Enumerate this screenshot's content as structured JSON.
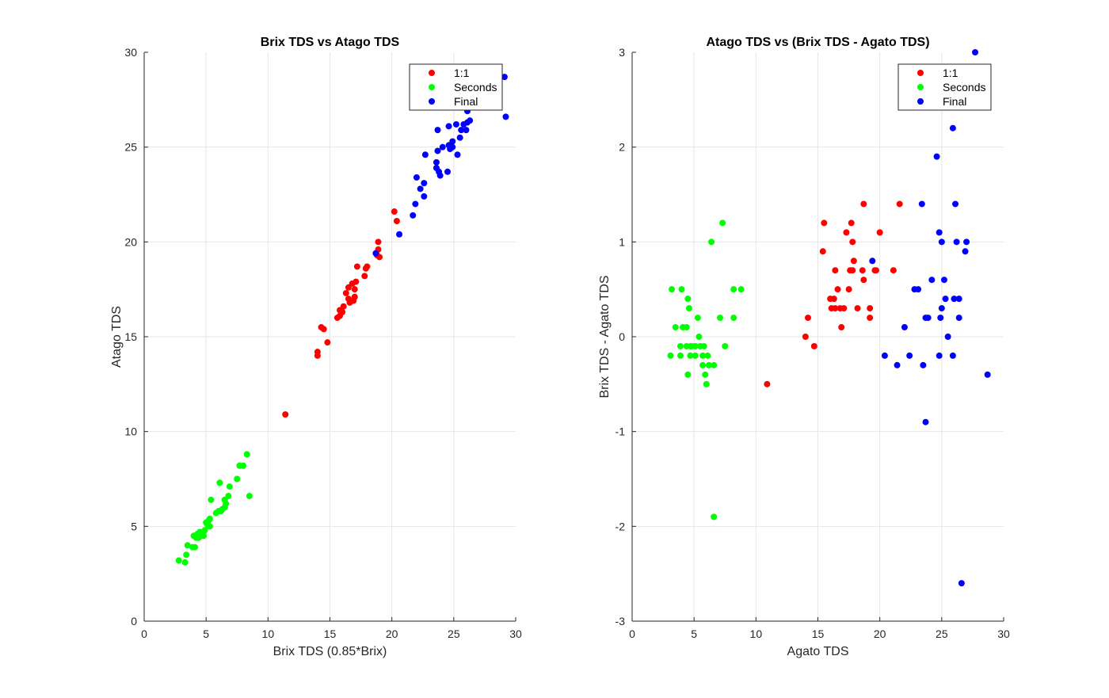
{
  "chart_data": [
    {
      "type": "scatter",
      "title": "Brix TDS vs Atago TDS",
      "xlabel": "Brix TDS (0.85*Brix)",
      "ylabel": "Atago TDS",
      "xlim": [
        0,
        30
      ],
      "ylim": [
        0,
        30
      ],
      "xticks": [
        0,
        5,
        10,
        15,
        20,
        25,
        30
      ],
      "yticks": [
        0,
        5,
        10,
        15,
        20,
        25,
        30
      ],
      "grid": true,
      "legend_position": "top-right",
      "series": [
        {
          "name": "1:1",
          "color": "#ff0000",
          "points": [
            [
              11.4,
              10.9
            ],
            [
              14.0,
              14.0
            ],
            [
              14.0,
              14.2
            ],
            [
              14.3,
              15.5
            ],
            [
              14.5,
              15.4
            ],
            [
              14.8,
              14.7
            ],
            [
              15.6,
              16.0
            ],
            [
              15.8,
              16.1
            ],
            [
              15.8,
              16.4
            ],
            [
              16.0,
              16.3
            ],
            [
              16.1,
              16.6
            ],
            [
              16.3,
              17.3
            ],
            [
              16.5,
              17.0
            ],
            [
              16.5,
              17.6
            ],
            [
              16.6,
              16.8
            ],
            [
              16.8,
              17.8
            ],
            [
              16.9,
              16.9
            ],
            [
              17.0,
              17.1
            ],
            [
              17.0,
              17.5
            ],
            [
              17.1,
              17.9
            ],
            [
              17.2,
              18.7
            ],
            [
              17.8,
              18.2
            ],
            [
              17.9,
              18.6
            ],
            [
              18.0,
              18.7
            ],
            [
              18.8,
              19.3
            ],
            [
              18.9,
              19.6
            ],
            [
              19.0,
              19.2
            ],
            [
              18.9,
              20.0
            ],
            [
              20.2,
              21.6
            ],
            [
              20.4,
              21.1
            ]
          ]
        },
        {
          "name": "Seconds",
          "color": "#00ff00",
          "points": [
            [
              2.8,
              3.2
            ],
            [
              3.3,
              3.1
            ],
            [
              3.4,
              3.5
            ],
            [
              3.5,
              4.0
            ],
            [
              3.9,
              3.9
            ],
            [
              4.0,
              4.5
            ],
            [
              4.1,
              3.9
            ],
            [
              4.2,
              4.4
            ],
            [
              4.3,
              4.6
            ],
            [
              4.4,
              4.4
            ],
            [
              4.5,
              4.7
            ],
            [
              4.6,
              4.5
            ],
            [
              4.8,
              4.5
            ],
            [
              4.8,
              4.7
            ],
            [
              4.9,
              4.8
            ],
            [
              5.0,
              5.2
            ],
            [
              5.1,
              5.1
            ],
            [
              5.2,
              5.3
            ],
            [
              5.3,
              5.0
            ],
            [
              5.3,
              5.4
            ],
            [
              5.4,
              6.4
            ],
            [
              5.8,
              5.7
            ],
            [
              6.0,
              5.8
            ],
            [
              6.1,
              7.3
            ],
            [
              6.2,
              5.8
            ],
            [
              6.3,
              5.9
            ],
            [
              6.5,
              6.0
            ],
            [
              6.5,
              6.4
            ],
            [
              6.6,
              6.2
            ],
            [
              6.8,
              6.6
            ],
            [
              6.9,
              7.1
            ],
            [
              7.5,
              7.5
            ],
            [
              7.7,
              8.2
            ],
            [
              8.0,
              8.2
            ],
            [
              8.3,
              8.8
            ],
            [
              8.5,
              6.6
            ]
          ]
        },
        {
          "name": "Final",
          "color": "#0000ff",
          "points": [
            [
              18.7,
              19.4
            ],
            [
              20.6,
              20.4
            ],
            [
              21.7,
              21.4
            ],
            [
              21.9,
              22.0
            ],
            [
              22.0,
              23.4
            ],
            [
              22.3,
              22.8
            ],
            [
              22.6,
              22.4
            ],
            [
              22.6,
              23.1
            ],
            [
              22.7,
              24.6
            ],
            [
              23.6,
              23.9
            ],
            [
              23.6,
              24.2
            ],
            [
              23.7,
              25.9
            ],
            [
              23.7,
              24.8
            ],
            [
              23.8,
              23.7
            ],
            [
              23.9,
              23.5
            ],
            [
              24.1,
              25.0
            ],
            [
              24.5,
              23.7
            ],
            [
              24.6,
              25.1
            ],
            [
              24.6,
              26.1
            ],
            [
              24.7,
              24.9
            ],
            [
              24.9,
              25.3
            ],
            [
              24.9,
              25.0
            ],
            [
              25.2,
              26.2
            ],
            [
              25.3,
              24.6
            ],
            [
              25.5,
              25.5
            ],
            [
              25.6,
              25.9
            ],
            [
              25.8,
              26.2
            ],
            [
              26.0,
              25.9
            ],
            [
              26.1,
              26.3
            ],
            [
              26.1,
              26.9
            ],
            [
              26.3,
              26.4
            ],
            [
              29.1,
              28.7
            ],
            [
              29.2,
              26.6
            ]
          ]
        }
      ]
    },
    {
      "type": "scatter",
      "title": "Atago TDS vs (Brix TDS - Agato TDS)",
      "xlabel": "Agato TDS",
      "ylabel": "Brix TDS - Agato TDS",
      "xlim": [
        0,
        30
      ],
      "ylim": [
        -3,
        3
      ],
      "xticks": [
        0,
        5,
        10,
        15,
        20,
        25,
        30
      ],
      "yticks": [
        -3,
        -2,
        -1,
        0,
        1,
        2,
        3
      ],
      "grid": true,
      "legend_position": "top-right",
      "series": [
        {
          "name": "1:1",
          "color": "#ff0000",
          "points": [
            [
              10.9,
              -0.5
            ],
            [
              14.0,
              0.0
            ],
            [
              14.2,
              0.2
            ],
            [
              14.7,
              -0.1
            ],
            [
              15.4,
              0.9
            ],
            [
              15.5,
              1.2
            ],
            [
              16.0,
              0.4
            ],
            [
              16.1,
              0.3
            ],
            [
              16.3,
              0.4
            ],
            [
              16.4,
              0.3
            ],
            [
              16.4,
              0.7
            ],
            [
              16.6,
              0.5
            ],
            [
              16.8,
              0.3
            ],
            [
              16.9,
              0.1
            ],
            [
              17.1,
              0.3
            ],
            [
              17.3,
              1.1
            ],
            [
              17.5,
              0.5
            ],
            [
              17.6,
              0.7
            ],
            [
              17.7,
              1.2
            ],
            [
              17.8,
              1.0
            ],
            [
              17.8,
              0.7
            ],
            [
              17.9,
              0.8
            ],
            [
              18.2,
              0.3
            ],
            [
              18.6,
              0.7
            ],
            [
              18.7,
              0.6
            ],
            [
              18.7,
              1.4
            ],
            [
              19.2,
              0.3
            ],
            [
              19.2,
              0.2
            ],
            [
              19.6,
              0.7
            ],
            [
              19.7,
              0.7
            ],
            [
              20.0,
              1.1
            ],
            [
              21.1,
              0.7
            ],
            [
              21.6,
              1.4
            ]
          ]
        },
        {
          "name": "Seconds",
          "color": "#00ff00",
          "points": [
            [
              3.1,
              -0.2
            ],
            [
              3.2,
              0.5
            ],
            [
              3.5,
              0.1
            ],
            [
              3.9,
              -0.1
            ],
            [
              3.9,
              -0.2
            ],
            [
              4.0,
              0.5
            ],
            [
              4.1,
              0.1
            ],
            [
              4.4,
              0.1
            ],
            [
              4.4,
              -0.1
            ],
            [
              4.5,
              -0.4
            ],
            [
              4.5,
              0.4
            ],
            [
              4.6,
              0.3
            ],
            [
              4.7,
              -0.1
            ],
            [
              4.7,
              -0.2
            ],
            [
              4.8,
              -0.1
            ],
            [
              5.1,
              -0.2
            ],
            [
              5.1,
              -0.1
            ],
            [
              5.3,
              0.2
            ],
            [
              5.4,
              0.0
            ],
            [
              5.5,
              -0.1
            ],
            [
              5.7,
              -0.3
            ],
            [
              5.7,
              -0.2
            ],
            [
              5.8,
              -0.1
            ],
            [
              5.9,
              -0.4
            ],
            [
              6.0,
              -0.5
            ],
            [
              6.1,
              -0.2
            ],
            [
              6.2,
              -0.3
            ],
            [
              6.4,
              1.0
            ],
            [
              6.6,
              -1.9
            ],
            [
              6.6,
              -0.3
            ],
            [
              7.1,
              0.2
            ],
            [
              7.3,
              1.2
            ],
            [
              7.5,
              -0.1
            ],
            [
              8.2,
              0.2
            ],
            [
              8.2,
              0.5
            ],
            [
              8.8,
              0.5
            ]
          ]
        },
        {
          "name": "Final",
          "color": "#0000ff",
          "points": [
            [
              19.4,
              0.8
            ],
            [
              20.4,
              -0.2
            ],
            [
              21.4,
              -0.3
            ],
            [
              22.0,
              0.1
            ],
            [
              22.4,
              -0.2
            ],
            [
              22.8,
              0.5
            ],
            [
              23.1,
              0.5
            ],
            [
              23.4,
              1.4
            ],
            [
              23.5,
              -0.3
            ],
            [
              23.7,
              -0.9
            ],
            [
              23.7,
              0.2
            ],
            [
              23.9,
              0.2
            ],
            [
              24.2,
              0.6
            ],
            [
              24.6,
              1.9
            ],
            [
              24.8,
              -0.2
            ],
            [
              24.8,
              1.1
            ],
            [
              24.9,
              0.2
            ],
            [
              25.0,
              1.0
            ],
            [
              25.0,
              0.3
            ],
            [
              25.2,
              0.6
            ],
            [
              25.3,
              0.4
            ],
            [
              25.5,
              0.0
            ],
            [
              25.9,
              -0.2
            ],
            [
              25.9,
              2.2
            ],
            [
              26.0,
              0.4
            ],
            [
              26.1,
              1.4
            ],
            [
              26.2,
              1.0
            ],
            [
              26.4,
              0.4
            ],
            [
              26.4,
              0.2
            ],
            [
              26.6,
              -2.6
            ],
            [
              26.9,
              0.9
            ],
            [
              27.0,
              1.0
            ],
            [
              27.7,
              3.0
            ],
            [
              28.7,
              -0.4
            ]
          ]
        }
      ]
    }
  ]
}
